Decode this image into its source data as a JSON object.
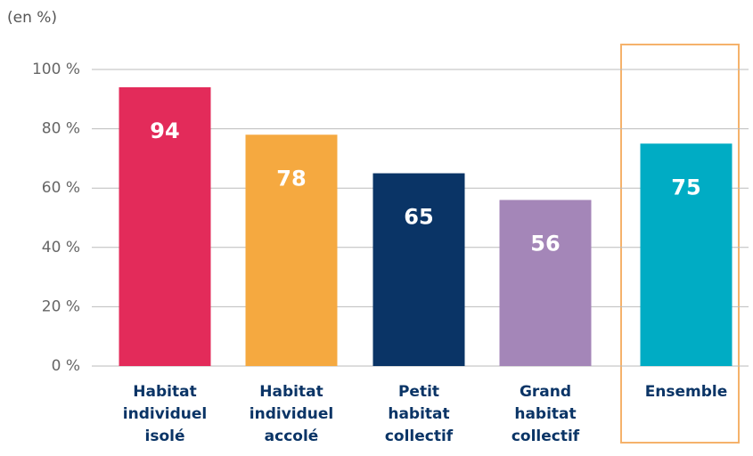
{
  "chart_data": {
    "type": "bar",
    "unit_label": "(en %)",
    "categories": [
      "Habitat individuel isolé",
      "Habitat individuel accolé",
      "Petit habitat collectif",
      "Grand habitat collectif",
      "Ensemble"
    ],
    "values": [
      94,
      78,
      65,
      56,
      75
    ],
    "colors": [
      "#e32b5a",
      "#f5a940",
      "#0a3466",
      "#a486b8",
      "#00acc4"
    ],
    "ylim": [
      0,
      100
    ],
    "yticks": [
      {
        "value": 0,
        "label": "0 %"
      },
      {
        "value": 20,
        "label": "20 %"
      },
      {
        "value": 40,
        "label": "40 %"
      },
      {
        "value": 60,
        "label": "60 %"
      },
      {
        "value": 80,
        "label": "80 %"
      },
      {
        "value": 100,
        "label": "100 %"
      }
    ],
    "grid": true
  }
}
